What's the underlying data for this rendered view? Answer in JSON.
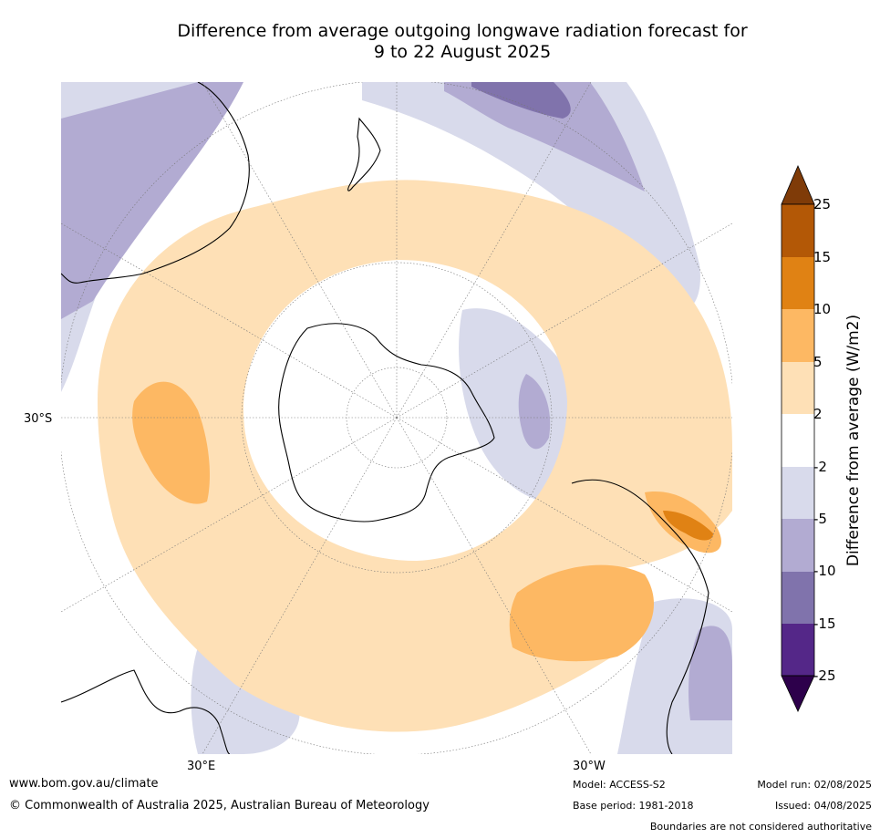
{
  "title": {
    "line1": "Difference from average outgoing longwave radiation forecast for",
    "line2": "9 to 22 August 2025"
  },
  "map": {
    "projection": "south polar stereographic",
    "labels": {
      "lat": "30°S",
      "lon_left": "30°E",
      "lon_right": "30°W"
    }
  },
  "colorbar": {
    "title": "Difference from average (W/m2)",
    "ticks": [
      "25",
      "15",
      "10",
      "5",
      "2",
      "-2",
      "-5",
      "-10",
      "-15",
      "-25"
    ],
    "colors": {
      "above_25": "#7f3b08",
      "15_25": "#b35806",
      "10_15": "#e08214",
      "5_10": "#fdb863",
      "2_5": "#fee0b6",
      "neutral": "#ffffff",
      "m5_m2": "#d8daeb",
      "m10_m5": "#b2abd2",
      "m15_m10": "#8073ac",
      "m25_m15": "#542788",
      "below_m25": "#2d004b"
    }
  },
  "footer": {
    "website": "www.bom.gov.au/climate",
    "copyright": "© Commonwealth of Australia 2025, Australian Bureau of Meteorology",
    "model": "Model: ACCESS-S2",
    "base_period": "Base period: 1981-2018",
    "model_run": "Model run: 02/08/2025",
    "issued": "Issued: 04/08/2025",
    "disclaimer": "Boundaries are not considered authoritative"
  }
}
